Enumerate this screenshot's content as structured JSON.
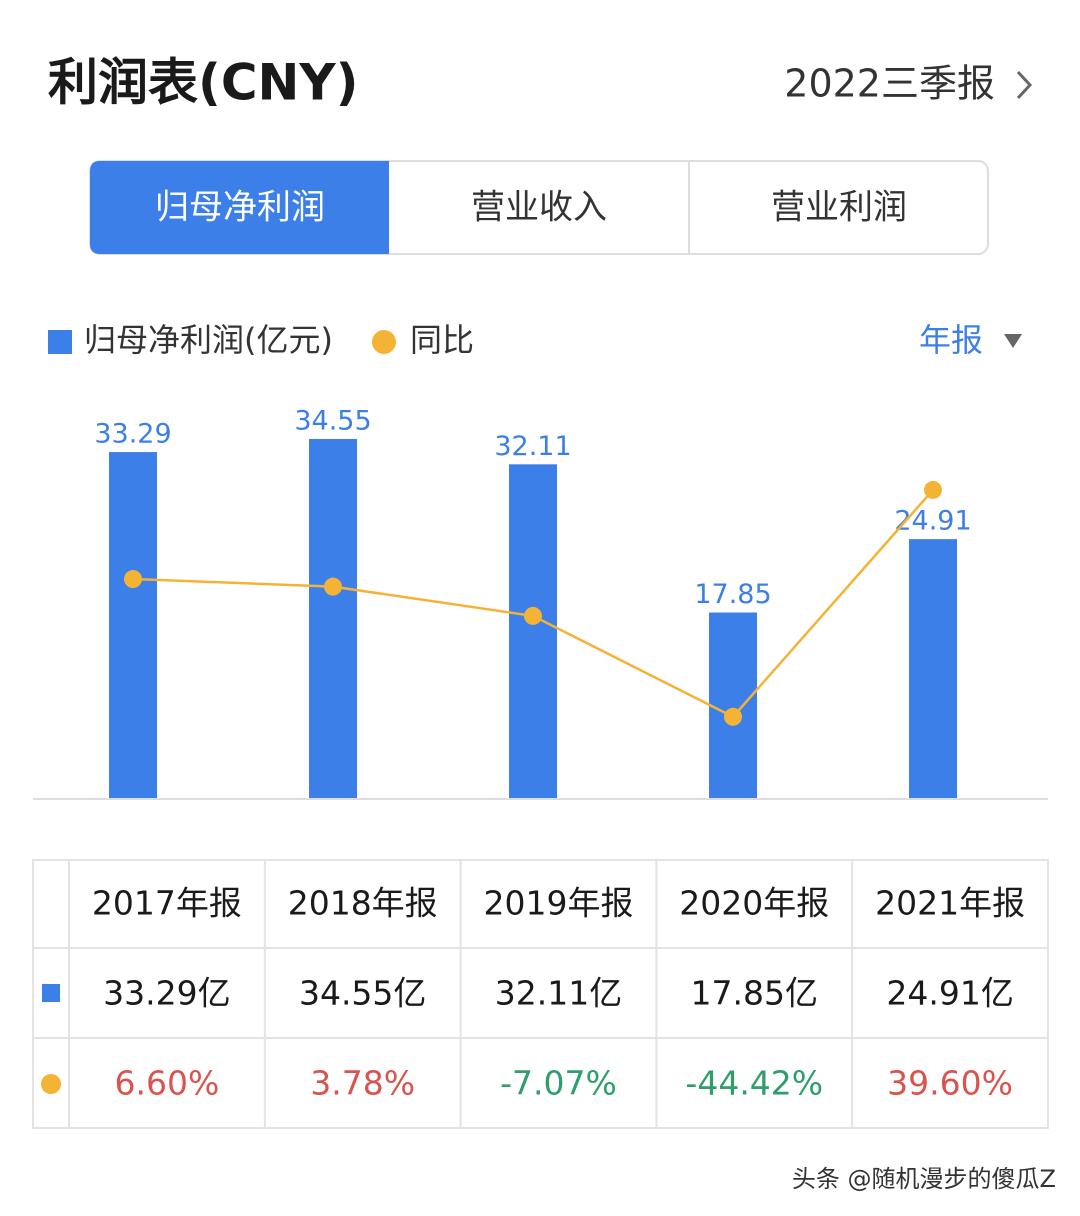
{
  "header": {
    "title": "利润表(CNY)",
    "period": "2022三季报"
  },
  "tabs": [
    "归母净利润",
    "营业收入",
    "营业利润"
  ],
  "period_selector": "年报",
  "chart_data": {
    "type": "bar",
    "categories": [
      "2017年报",
      "2018年报",
      "2019年报",
      "2020年报",
      "2021年报"
    ],
    "series": [
      {
        "name": "归母净利润(亿元)",
        "color": "#3d7fe8",
        "values": [
          33.29,
          34.55,
          32.11,
          17.85,
          24.91
        ]
      },
      {
        "name": "同比",
        "color": "#f5b335",
        "type": "line",
        "axis": "y2",
        "values": [
          6.6,
          3.78,
          -7.07,
          -44.42,
          39.6
        ]
      }
    ],
    "ylim": [
      0,
      38.3
    ],
    "y2lim": [
      -74.5,
      72.9
    ]
  },
  "table": {
    "rows": [
      [
        "33.29亿",
        "34.55亿",
        "32.11亿",
        "17.85亿",
        "24.91亿"
      ],
      [
        "6.60%",
        "3.78%",
        "-7.07%",
        "-44.42%",
        "39.60%"
      ]
    ]
  },
  "watermark": "头条 @随机漫步的傻瓜Z"
}
